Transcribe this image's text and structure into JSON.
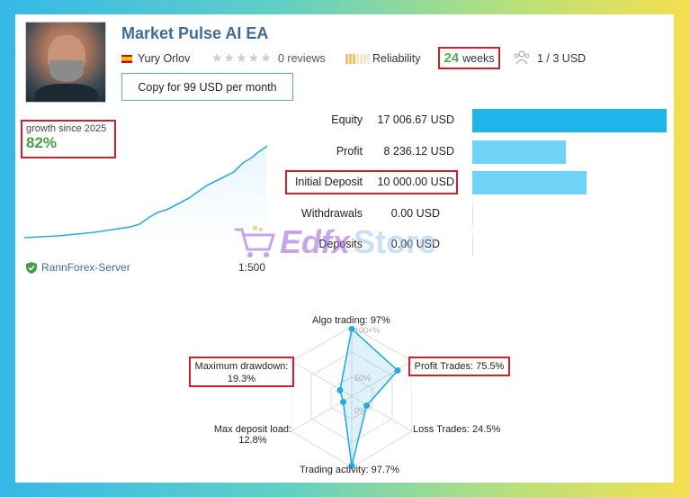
{
  "header": {
    "title": "Market Pulse AI EA",
    "author": "Yury Orlov",
    "reviews": "0 reviews",
    "reliability": "Reliability",
    "weeks_number": "24",
    "weeks_unit": "weeks",
    "subscribers": "1 / 3 USD",
    "copy_button": "Copy for 99 USD per month"
  },
  "growth": {
    "label": "growth since 2025",
    "value": "82%"
  },
  "stats": [
    {
      "label": "Equity",
      "value": "17 006.67 USD",
      "fraction": 1.0
    },
    {
      "label": "Profit",
      "value": "8 236.12 USD",
      "fraction": 0.48
    },
    {
      "label": "Initial Deposit",
      "value": "10 000.00 USD",
      "fraction": 0.59
    },
    {
      "label": "Withdrawals",
      "value": "0.00 USD",
      "fraction": 0
    },
    {
      "label": "Deposits",
      "value": "0.00 USD",
      "fraction": 0
    }
  ],
  "account": {
    "server": "RannForex-Server",
    "leverage": "1:500"
  },
  "watermark": {
    "part1": "Edfx",
    "part2": "Store"
  },
  "radar": {
    "algo_trading": "Algo trading: 97%",
    "profit_trades": "Profit Trades: 75.5%",
    "loss_trades": "Loss Trades: 24.5%",
    "trading_activity": "Trading activity: 97.7%",
    "max_deposit_load_line1": "Max deposit load:",
    "max_deposit_load_line2": "12.8%",
    "max_drawdown_line1": "Maximum drawdown:",
    "max_drawdown_line2": "19.3%",
    "tick_100": "100+%",
    "tick_50": "50%",
    "tick_0": "0%",
    "values": [
      97,
      75.5,
      24.5,
      97.7,
      12.8,
      19.3
    ]
  },
  "colors": {
    "title": "#3f6c9a",
    "highlight": "#d0202a",
    "growth": "#43a047",
    "bar": "#6fd3f7",
    "bar_equity": "#1fb4ea"
  }
}
